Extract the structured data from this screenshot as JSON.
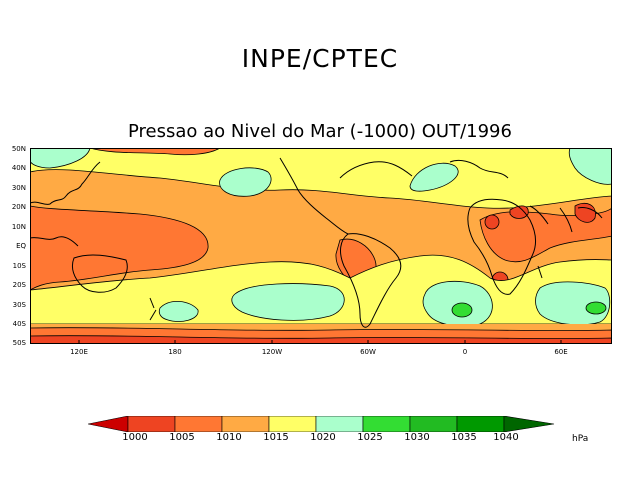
{
  "header": {
    "organization": "INPE/CPTEC",
    "map_title": "Pressao ao Nivel do Mar (-1000) OUT/1996"
  },
  "map": {
    "lat_labels": [
      "50N",
      "40N",
      "30N",
      "20N",
      "10N",
      "EQ",
      "10S",
      "20S",
      "30S",
      "40S",
      "50S"
    ],
    "lon_labels": [
      "120E",
      "180",
      "120W",
      "60W",
      "0",
      "60E"
    ]
  },
  "colorbar": {
    "unit": "hPa",
    "levels": [
      "1000",
      "1005",
      "1010",
      "1015",
      "1020",
      "1025",
      "1030",
      "1035",
      "1040"
    ],
    "colors": [
      "#cc0000",
      "#ee4422",
      "#ff7733",
      "#ffaa44",
      "#ffff66",
      "#aaffcc",
      "#33dd33",
      "#22bb22",
      "#009900",
      "#006600"
    ]
  },
  "colors": {
    "c1005": "#ee4422",
    "c1010": "#ff7733",
    "c1015": "#ffaa44",
    "c1020": "#ffff66",
    "c1025": "#aaffcc",
    "c1030": "#33dd33"
  }
}
